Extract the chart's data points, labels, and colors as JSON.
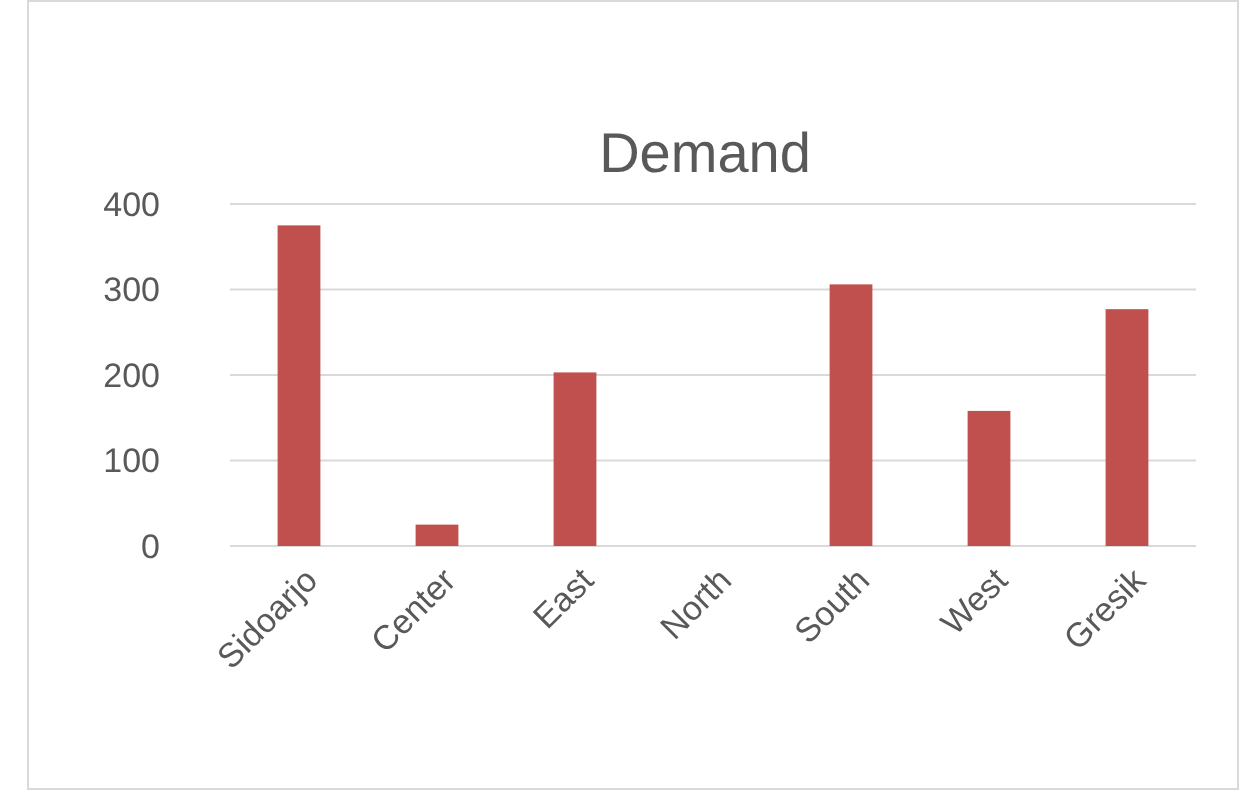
{
  "chart_data": {
    "type": "bar",
    "title": "Demand",
    "categories": [
      "Sidoarjo",
      "Center",
      "East",
      "North",
      "South",
      "West",
      "Gresik"
    ],
    "values": [
      375,
      25,
      203,
      0,
      306,
      158,
      277
    ],
    "color": "#c0504d",
    "ylim": [
      0,
      400
    ],
    "yticks": [
      0,
      100,
      200,
      300,
      400
    ],
    "grid": "y"
  }
}
